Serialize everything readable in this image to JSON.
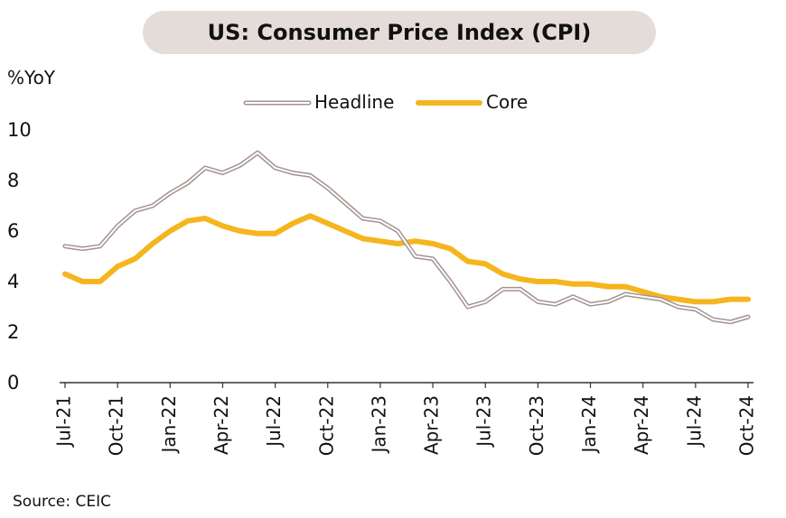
{
  "header": {
    "title": "US: Consumer Price Index (CPI)"
  },
  "footer": {
    "source": "Source: CEIC"
  },
  "chart_data": {
    "type": "line",
    "ylabel": "%YoY",
    "ylim": [
      0,
      10
    ],
    "yticks": [
      0,
      2,
      4,
      6,
      8,
      10
    ],
    "grid": false,
    "legend_position": "top",
    "x": [
      "Jul-21",
      "Aug-21",
      "Sep-21",
      "Oct-21",
      "Nov-21",
      "Dec-21",
      "Jan-22",
      "Feb-22",
      "Mar-22",
      "Apr-22",
      "May-22",
      "Jun-22",
      "Jul-22",
      "Aug-22",
      "Sep-22",
      "Oct-22",
      "Nov-22",
      "Dec-22",
      "Jan-23",
      "Feb-23",
      "Mar-23",
      "Apr-23",
      "May-23",
      "Jun-23",
      "Jul-23",
      "Aug-23",
      "Sep-23",
      "Oct-23",
      "Nov-23",
      "Dec-23",
      "Jan-24",
      "Feb-24",
      "Mar-24",
      "Apr-24",
      "May-24",
      "Jun-24",
      "Jul-24",
      "Aug-24",
      "Sep-24",
      "Oct-24"
    ],
    "xtick_labels": [
      "Jul-21",
      "Oct-21",
      "Jan-22",
      "Apr-22",
      "Jul-22",
      "Oct-22",
      "Jan-23",
      "Apr-23",
      "Jul-23",
      "Oct-23",
      "Jan-24",
      "Apr-24",
      "Jul-24",
      "Oct-24"
    ],
    "series": [
      {
        "name": "Headline",
        "color": "#a39390",
        "values": [
          5.4,
          5.3,
          5.4,
          6.2,
          6.8,
          7.0,
          7.5,
          7.9,
          8.5,
          8.3,
          8.6,
          9.1,
          8.5,
          8.3,
          8.2,
          7.7,
          7.1,
          6.5,
          6.4,
          6.0,
          5.0,
          4.9,
          4.0,
          3.0,
          3.2,
          3.7,
          3.7,
          3.2,
          3.1,
          3.4,
          3.1,
          3.2,
          3.5,
          3.4,
          3.3,
          3.0,
          2.9,
          2.5,
          2.4,
          2.6
        ]
      },
      {
        "name": "Core",
        "color": "#f5b51e",
        "values": [
          4.3,
          4.0,
          4.0,
          4.6,
          4.9,
          5.5,
          6.0,
          6.4,
          6.5,
          6.2,
          6.0,
          5.9,
          5.9,
          6.3,
          6.6,
          6.3,
          6.0,
          5.7,
          5.6,
          5.5,
          5.6,
          5.5,
          5.3,
          4.8,
          4.7,
          4.3,
          4.1,
          4.0,
          4.0,
          3.9,
          3.9,
          3.8,
          3.8,
          3.6,
          3.4,
          3.3,
          3.2,
          3.2,
          3.3,
          3.3
        ]
      }
    ]
  }
}
